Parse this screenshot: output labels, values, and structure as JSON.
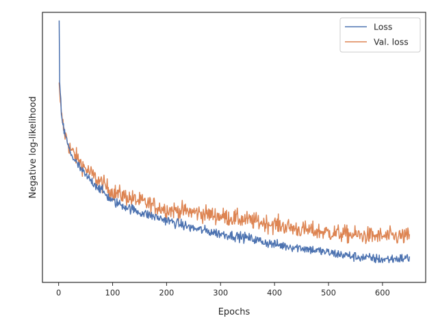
{
  "chart_data": {
    "type": "line",
    "xlabel": "Epochs",
    "ylabel": "Negative log-likelihood",
    "xlim": [
      -30,
      680
    ],
    "ylim": [
      0,
      1
    ],
    "xticks": [
      0,
      100,
      200,
      300,
      400,
      500,
      600
    ],
    "y_tick_labels_visible": false,
    "grid": false,
    "legend_position": "top-right",
    "series": [
      {
        "name": "Loss",
        "color": "#4c72b0",
        "noise": 0.009,
        "points": [
          [
            1,
            0.97
          ],
          [
            2,
            0.74
          ],
          [
            5,
            0.63
          ],
          [
            10,
            0.56
          ],
          [
            20,
            0.49
          ],
          [
            30,
            0.45
          ],
          [
            50,
            0.395
          ],
          [
            75,
            0.35
          ],
          [
            100,
            0.3
          ],
          [
            150,
            0.26
          ],
          [
            200,
            0.23
          ],
          [
            250,
            0.2
          ],
          [
            300,
            0.18
          ],
          [
            350,
            0.165
          ],
          [
            400,
            0.14
          ],
          [
            450,
            0.128
          ],
          [
            500,
            0.11
          ],
          [
            550,
            0.095
          ],
          [
            600,
            0.085
          ],
          [
            650,
            0.09
          ]
        ]
      },
      {
        "name": "Val. loss",
        "color": "#dd8452",
        "noise": 0.016,
        "points": [
          [
            1,
            0.74
          ],
          [
            3,
            0.67
          ],
          [
            5,
            0.62
          ],
          [
            10,
            0.56
          ],
          [
            20,
            0.5
          ],
          [
            30,
            0.47
          ],
          [
            50,
            0.42
          ],
          [
            75,
            0.375
          ],
          [
            100,
            0.335
          ],
          [
            150,
            0.3
          ],
          [
            200,
            0.27
          ],
          [
            250,
            0.26
          ],
          [
            300,
            0.245
          ],
          [
            350,
            0.23
          ],
          [
            400,
            0.215
          ],
          [
            450,
            0.195
          ],
          [
            500,
            0.185
          ],
          [
            550,
            0.175
          ],
          [
            600,
            0.17
          ],
          [
            650,
            0.17
          ]
        ]
      }
    ]
  }
}
